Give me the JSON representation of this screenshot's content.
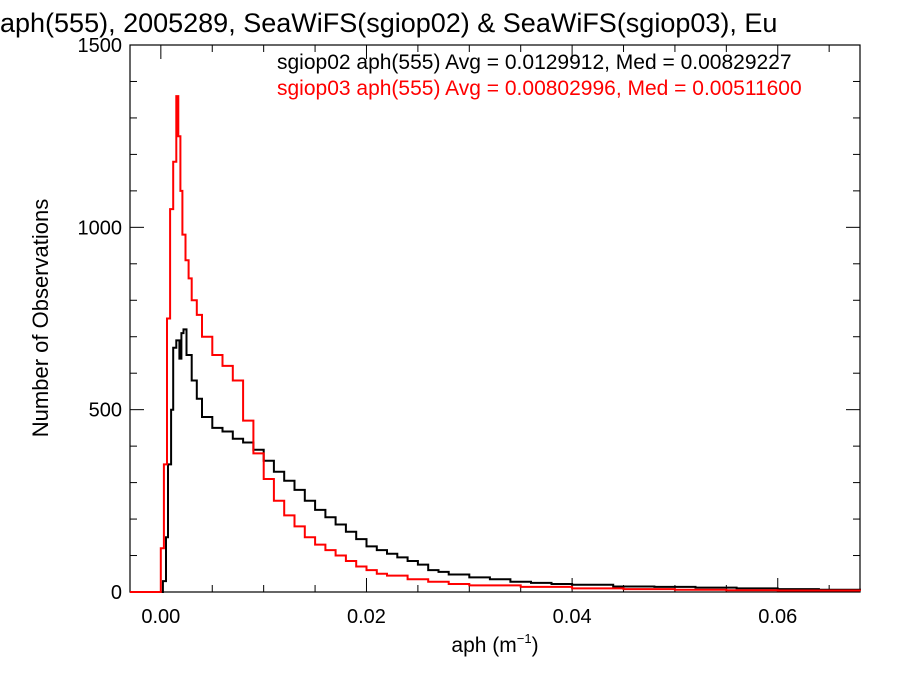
{
  "chart_data": {
    "type": "step-histogram",
    "title": "aph(555), 2005289, SeaWiFS(sgiop02) & SeaWiFS(sgiop03), Eu",
    "xlabel_base": "aph (m",
    "xlabel_sup": "−1",
    "xlabel_close": ")",
    "ylabel": "Number of Observations",
    "xlim": [
      -0.003,
      0.068
    ],
    "ylim": [
      0,
      1500
    ],
    "xticks": [
      {
        "value": 0.0,
        "label": "0.00"
      },
      {
        "value": 0.02,
        "label": "0.02"
      },
      {
        "value": 0.04,
        "label": "0.04"
      },
      {
        "value": 0.06,
        "label": "0.06"
      }
    ],
    "xminor": [
      0.005,
      0.01,
      0.015,
      0.025,
      0.03,
      0.035,
      0.045,
      0.05,
      0.055,
      0.065
    ],
    "yticks": [
      {
        "value": 0,
        "label": "0"
      },
      {
        "value": 500,
        "label": "500"
      },
      {
        "value": 1000,
        "label": "1000"
      },
      {
        "value": 1500,
        "label": "1500"
      }
    ],
    "yminor": [
      100,
      200,
      300,
      400,
      600,
      700,
      800,
      900,
      1100,
      1200,
      1300,
      1400
    ],
    "grid": false,
    "legend_position": "top-right",
    "series": [
      {
        "name": "sgiop02 aph(555) Avg = 0.0129912, Med = 0.00829227",
        "color": "#000000",
        "x": [
          -0.003,
          -0.0001,
          0.0002,
          0.0005,
          0.0007,
          0.001,
          0.0012,
          0.0015,
          0.0018,
          0.002,
          0.0022,
          0.0025,
          0.003,
          0.0035,
          0.004,
          0.005,
          0.006,
          0.007,
          0.008,
          0.009,
          0.01,
          0.011,
          0.012,
          0.013,
          0.014,
          0.015,
          0.016,
          0.017,
          0.018,
          0.019,
          0.02,
          0.021,
          0.022,
          0.023,
          0.024,
          0.025,
          0.026,
          0.027,
          0.028,
          0.03,
          0.032,
          0.034,
          0.036,
          0.038,
          0.04,
          0.044,
          0.048,
          0.052,
          0.056,
          0.06,
          0.064,
          0.068
        ],
        "y": [
          0,
          0,
          30,
          150,
          350,
          500,
          670,
          690,
          640,
          710,
          720,
          650,
          580,
          530,
          480,
          450,
          440,
          420,
          410,
          390,
          360,
          330,
          305,
          280,
          250,
          225,
          205,
          185,
          165,
          145,
          125,
          115,
          105,
          95,
          85,
          75,
          60,
          55,
          48,
          40,
          35,
          28,
          25,
          22,
          20,
          15,
          14,
          12,
          10,
          8,
          6,
          5
        ]
      },
      {
        "name": "sgiop03 aph(555) Avg = 0.00802996, Med = 0.00511600",
        "color": "#ff0000",
        "x": [
          -0.003,
          -0.0003,
          0.0,
          0.0003,
          0.0006,
          0.0009,
          0.0012,
          0.0015,
          0.0017,
          0.0019,
          0.0021,
          0.0024,
          0.0027,
          0.003,
          0.0035,
          0.004,
          0.005,
          0.006,
          0.007,
          0.008,
          0.009,
          0.01,
          0.011,
          0.012,
          0.013,
          0.014,
          0.015,
          0.016,
          0.017,
          0.018,
          0.019,
          0.02,
          0.021,
          0.022,
          0.024,
          0.026,
          0.028,
          0.03,
          0.035,
          0.04,
          0.045,
          0.05,
          0.055,
          0.06,
          0.068
        ],
        "y": [
          0,
          0,
          120,
          350,
          750,
          1050,
          1180,
          1360,
          1250,
          1100,
          980,
          910,
          860,
          800,
          760,
          700,
          650,
          620,
          580,
          470,
          380,
          310,
          250,
          210,
          180,
          150,
          130,
          115,
          100,
          85,
          70,
          60,
          50,
          45,
          35,
          28,
          22,
          18,
          14,
          10,
          8,
          6,
          5,
          4,
          3
        ]
      }
    ]
  }
}
